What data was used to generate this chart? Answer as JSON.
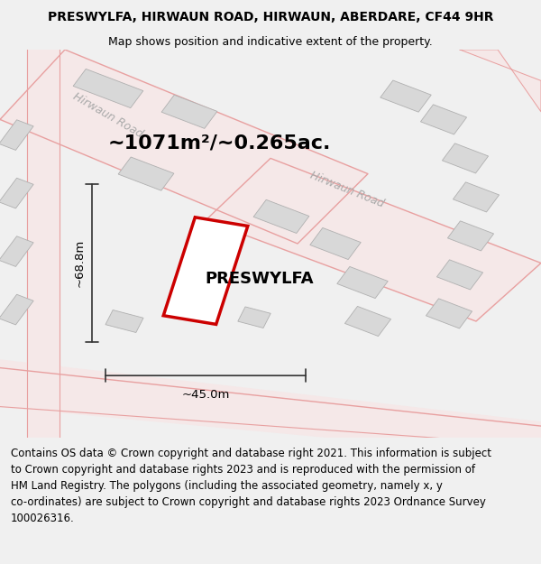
{
  "title_line1": "PRESWYLFA, HIRWAUN ROAD, HIRWAUN, ABERDARE, CF44 9HR",
  "title_line2": "Map shows position and indicative extent of the property.",
  "area_label": "~1071m²/~0.265ac.",
  "property_name": "PRESWYLFA",
  "dim_width": "~45.0m",
  "dim_height": "~68.8m",
  "bg_color": "#f0f0f0",
  "map_bg": "#ffffff",
  "road_stroke": "#e8a0a0",
  "road_fill": "#f5e8e8",
  "building_fill": "#d8d8d8",
  "building_stroke": "#b0b0b0",
  "road_label_color": "#aaaaaa",
  "plot_stroke": "#cc0000",
  "plot_fill": "#ffffff",
  "dim_line_color": "#333333",
  "footer_lines": [
    "Contains OS data © Crown copyright and database right 2021. This information is subject",
    "to Crown copyright and database rights 2023 and is reproduced with the permission of",
    "HM Land Registry. The polygons (including the associated geometry, namely x, y",
    "co-ordinates) are subject to Crown copyright and database rights 2023 Ordnance Survey",
    "100026316."
  ],
  "title_fontsize": 10,
  "subtitle_fontsize": 9,
  "footer_fontsize": 8.5
}
